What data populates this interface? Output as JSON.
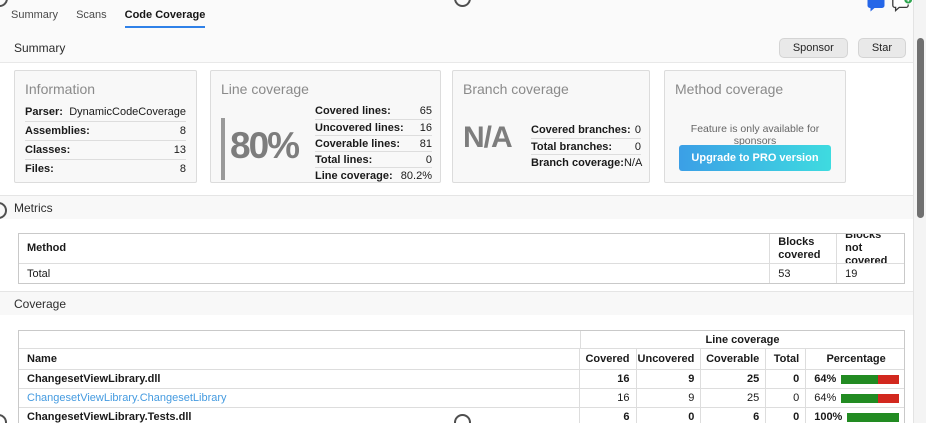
{
  "tabs": [
    {
      "label": "Summary",
      "active": false
    },
    {
      "label": "Scans",
      "active": false
    },
    {
      "label": "Code Coverage",
      "active": true
    }
  ],
  "header": {
    "title": "Summary",
    "sponsor_label": "Sponsor",
    "star_label": "Star"
  },
  "icons": {
    "comment": "chat-bubble-filled-icon",
    "add_comment": "chat-bubble-add-icon"
  },
  "cards": {
    "information": {
      "title": "Information",
      "rows": [
        [
          "Parser:",
          "DynamicCodeCoverage"
        ],
        [
          "Assemblies:",
          "8"
        ],
        [
          "Classes:",
          "13"
        ],
        [
          "Files:",
          "8"
        ]
      ]
    },
    "line_coverage": {
      "title": "Line coverage",
      "big_value": "80%",
      "rows": [
        [
          "Covered lines:",
          "65"
        ],
        [
          "Uncovered lines:",
          "16"
        ],
        [
          "Coverable lines:",
          "81"
        ],
        [
          "Total lines:",
          "0"
        ],
        [
          "Line coverage:",
          "80.2%"
        ]
      ]
    },
    "branch_coverage": {
      "title": "Branch coverage",
      "big_value": "N/A",
      "rows": [
        [
          "Covered branches:",
          "0"
        ],
        [
          "Total branches:",
          "0"
        ],
        [
          "Branch coverage:",
          "N/A"
        ]
      ]
    },
    "method_coverage": {
      "title": "Method coverage",
      "message": "Feature is only available for sponsors",
      "button_label": "Upgrade to PRO version"
    }
  },
  "metrics": {
    "section_title": "Metrics",
    "columns": [
      "Method",
      "Blocks covered",
      "Blocks not covered"
    ],
    "rows": [
      {
        "method": "Total",
        "blocks_covered": "53",
        "blocks_not_covered": "19"
      }
    ]
  },
  "coverage": {
    "section_title": "Coverage",
    "group_header": "Line coverage",
    "columns": [
      "Name",
      "Covered",
      "Uncovered",
      "Coverable",
      "Total",
      "Percentage"
    ],
    "rows": [
      {
        "name": "ChangesetViewLibrary.dll",
        "covered": "16",
        "uncovered": "9",
        "coverable": "25",
        "total": "0",
        "percentage": "64%",
        "percent": 64
      },
      {
        "name": "ChangesetViewLibrary.ChangesetLibrary",
        "covered": "16",
        "uncovered": "9",
        "coverable": "25",
        "total": "0",
        "percentage": "64%",
        "percent": 64
      },
      {
        "name": "ChangesetViewLibrary.Tests.dll",
        "covered": "6",
        "uncovered": "0",
        "coverable": "6",
        "total": "0",
        "percentage": "100%",
        "percent": 100
      }
    ]
  },
  "colors": {
    "accent": "#2f81e8",
    "link": "#459be0",
    "bargreen": "#228b22",
    "barred": "#d2281e",
    "grad1": "#3b9fe6",
    "grad2": "#3edbe0",
    "bignum": "#7d7d7d",
    "bubble": "#2566e8",
    "badge": "#2da44e"
  }
}
